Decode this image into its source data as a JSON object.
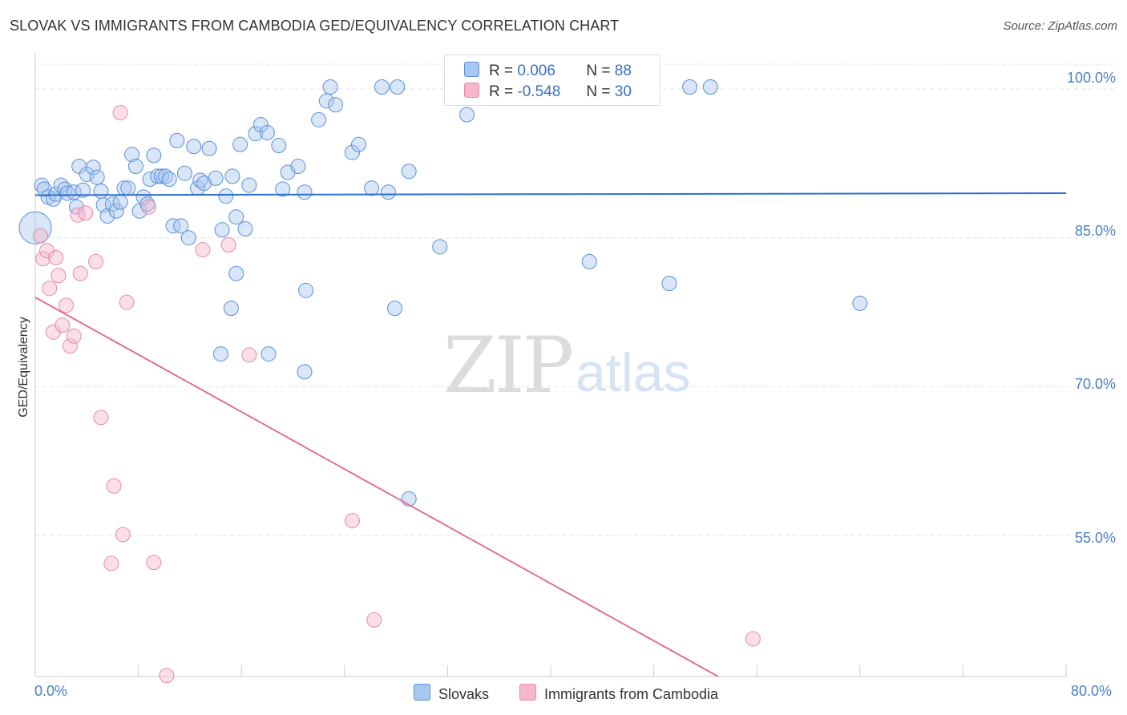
{
  "header": {
    "title": "SLOVAK VS IMMIGRANTS FROM CAMBODIA GED/EQUIVALENCY CORRELATION CHART",
    "source": "Source: ZipAtlas.com"
  },
  "watermark": {
    "zip": "ZIP",
    "atlas": "atlas"
  },
  "legend": {
    "rows": [
      {
        "r_label": "R =",
        "r_value": "0.006",
        "n_label": "N =",
        "n_value": "88",
        "color": "#a9c8f0"
      },
      {
        "r_label": "R =",
        "r_value": "-0.548",
        "n_label": "N =",
        "n_value": "30",
        "color": "#f5b8cb"
      }
    ]
  },
  "bottom_legend": [
    {
      "label": "Slovaks",
      "color": "#a9c8f0"
    },
    {
      "label": "Immigrants from Cambodia",
      "color": "#f5b8cb"
    }
  ],
  "colors": {
    "blue_fill": "#a9c8f0",
    "blue_stroke": "#5b8fd6",
    "blue_line": "#2f6fcb",
    "pink_fill": "#f5b8cb",
    "pink_stroke": "#e889a8",
    "pink_line": "#e0709a",
    "grid": "#e3e3e3"
  },
  "chart_data": {
    "type": "scatter",
    "title": "SLOVAK VS IMMIGRANTS FROM CAMBODIA GED/EQUIVALENCY CORRELATION CHART",
    "xlabel": "",
    "ylabel": "GED/Equivalency",
    "xlim": [
      0,
      80
    ],
    "ylim": [
      40.8,
      102.5
    ],
    "x_tick_labels": [
      "0.0%",
      "80.0%"
    ],
    "y_ticks": [
      100,
      85,
      70,
      55
    ],
    "y_tick_labels": [
      "100.0%",
      "85.0%",
      "70.0%",
      "55.0%"
    ],
    "grid": true,
    "legend_position": "top-center",
    "series": [
      {
        "name": "Slovaks",
        "r": 0.006,
        "n": 88,
        "trend": {
          "x": [
            0,
            80
          ],
          "y": [
            89.3,
            89.5
          ]
        },
        "points": [
          [
            0.0,
            86.0
          ],
          [
            0.5,
            90.3
          ],
          [
            0.7,
            89.9
          ],
          [
            1.0,
            89.1
          ],
          [
            1.4,
            88.9
          ],
          [
            1.6,
            89.4
          ],
          [
            2.0,
            90.3
          ],
          [
            2.3,
            89.9
          ],
          [
            2.5,
            89.5
          ],
          [
            3.0,
            89.6
          ],
          [
            3.2,
            88.1
          ],
          [
            3.4,
            92.2
          ],
          [
            3.7,
            89.8
          ],
          [
            4.0,
            91.4
          ],
          [
            4.5,
            92.1
          ],
          [
            4.8,
            91.1
          ],
          [
            5.1,
            89.7
          ],
          [
            5.3,
            88.3
          ],
          [
            5.6,
            87.2
          ],
          [
            6.0,
            88.4
          ],
          [
            6.3,
            87.7
          ],
          [
            6.6,
            88.6
          ],
          [
            6.9,
            90.0
          ],
          [
            7.2,
            90.0
          ],
          [
            7.5,
            93.4
          ],
          [
            7.8,
            92.2
          ],
          [
            8.1,
            87.7
          ],
          [
            8.4,
            89.1
          ],
          [
            8.7,
            88.4
          ],
          [
            8.9,
            90.9
          ],
          [
            9.2,
            93.3
          ],
          [
            9.5,
            91.2
          ],
          [
            9.8,
            91.2
          ],
          [
            10.1,
            91.2
          ],
          [
            10.4,
            90.9
          ],
          [
            10.7,
            86.2
          ],
          [
            11.0,
            94.8
          ],
          [
            11.3,
            86.2
          ],
          [
            11.6,
            91.5
          ],
          [
            11.9,
            85.0
          ],
          [
            12.3,
            94.2
          ],
          [
            12.6,
            90.0
          ],
          [
            12.8,
            90.8
          ],
          [
            13.1,
            90.5
          ],
          [
            13.5,
            94.0
          ],
          [
            14.0,
            91.0
          ],
          [
            14.5,
            85.8
          ],
          [
            14.8,
            89.2
          ],
          [
            15.3,
            91.2
          ],
          [
            15.6,
            87.1
          ],
          [
            15.9,
            94.4
          ],
          [
            16.3,
            85.9
          ],
          [
            16.6,
            90.3
          ],
          [
            17.1,
            95.5
          ],
          [
            17.5,
            96.4
          ],
          [
            18.0,
            95.6
          ],
          [
            18.9,
            94.3
          ],
          [
            19.2,
            89.9
          ],
          [
            19.6,
            91.6
          ],
          [
            20.4,
            92.2
          ],
          [
            20.9,
            89.6
          ],
          [
            22.0,
            96.9
          ],
          [
            22.6,
            98.8
          ],
          [
            22.9,
            100.2
          ],
          [
            23.3,
            98.4
          ],
          [
            24.6,
            93.6
          ],
          [
            25.1,
            94.4
          ],
          [
            26.1,
            90.0
          ],
          [
            26.9,
            100.2
          ],
          [
            27.4,
            89.6
          ],
          [
            28.1,
            100.2
          ],
          [
            29.0,
            91.7
          ],
          [
            31.4,
            84.1
          ],
          [
            33.5,
            97.4
          ],
          [
            34.6,
            100.2
          ],
          [
            43.0,
            82.6
          ],
          [
            49.2,
            80.4
          ],
          [
            50.8,
            100.2
          ],
          [
            52.4,
            100.2
          ],
          [
            64.0,
            78.4
          ],
          [
            15.6,
            81.4
          ],
          [
            15.2,
            77.9
          ],
          [
            14.4,
            73.3
          ],
          [
            18.1,
            73.3
          ],
          [
            20.9,
            71.5
          ],
          [
            21.0,
            79.7
          ],
          [
            27.9,
            77.9
          ],
          [
            29.0,
            58.7
          ]
        ]
      },
      {
        "name": "Immigrants from Cambodia",
        "r": -0.548,
        "n": 30,
        "trend": {
          "x": [
            0,
            53.0
          ],
          "y": [
            79.0,
            40.8
          ]
        },
        "points": [
          [
            0.4,
            85.2
          ],
          [
            0.6,
            82.9
          ],
          [
            0.9,
            83.7
          ],
          [
            1.1,
            79.9
          ],
          [
            1.4,
            75.5
          ],
          [
            1.6,
            83.0
          ],
          [
            1.8,
            81.2
          ],
          [
            2.1,
            76.2
          ],
          [
            2.4,
            78.2
          ],
          [
            2.7,
            74.1
          ],
          [
            3.0,
            75.1
          ],
          [
            3.3,
            87.3
          ],
          [
            3.5,
            81.4
          ],
          [
            3.9,
            87.5
          ],
          [
            4.7,
            82.6
          ],
          [
            5.1,
            66.9
          ],
          [
            6.1,
            60.0
          ],
          [
            6.6,
            97.6
          ],
          [
            6.8,
            55.1
          ],
          [
            7.1,
            78.5
          ],
          [
            5.9,
            52.2
          ],
          [
            9.2,
            52.3
          ],
          [
            10.2,
            40.9
          ],
          [
            8.8,
            88.1
          ],
          [
            13.0,
            83.8
          ],
          [
            15.0,
            84.3
          ],
          [
            16.6,
            73.2
          ],
          [
            24.6,
            56.5
          ],
          [
            26.3,
            46.5
          ],
          [
            55.7,
            44.6
          ]
        ]
      }
    ]
  }
}
